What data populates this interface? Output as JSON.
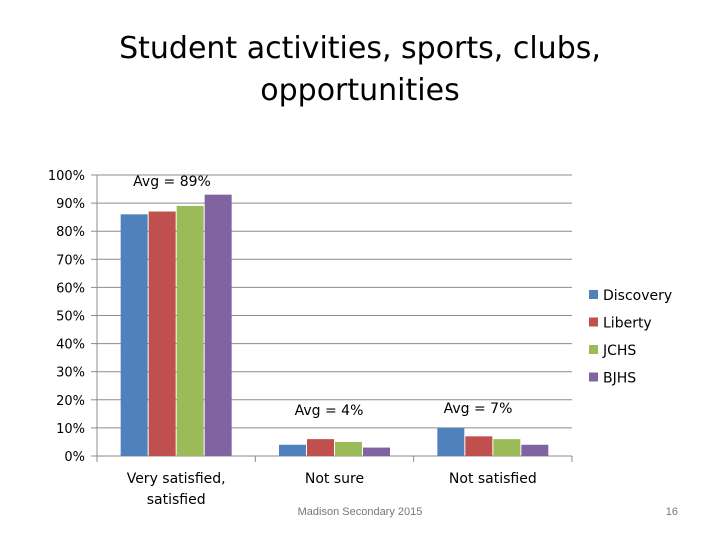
{
  "slide": {
    "title_line1": "Student activities, sports, clubs,",
    "title_line2": "opportunities",
    "footer": "Madison Secondary 2015",
    "page_number": "16"
  },
  "chart_data": {
    "type": "bar",
    "title": "Student activities, sports, clubs, opportunities",
    "categories": [
      "Very satisfied, satisfied",
      "Not sure",
      "Not satisfied"
    ],
    "series": [
      {
        "name": "Discovery",
        "color": "#4f81bd",
        "values": [
          86,
          4,
          10
        ]
      },
      {
        "name": "Liberty",
        "color": "#c0504d",
        "values": [
          87,
          6,
          7
        ]
      },
      {
        "name": "JCHS",
        "color": "#9bbb59",
        "values": [
          89,
          5,
          6
        ]
      },
      {
        "name": "BJHS",
        "color": "#8064a2",
        "values": [
          93,
          3,
          4
        ]
      }
    ],
    "ylim": [
      0,
      100
    ],
    "yticks": [
      "0%",
      "10%",
      "20%",
      "30%",
      "40%",
      "50%",
      "60%",
      "70%",
      "80%",
      "90%",
      "100%"
    ],
    "grid": true,
    "legend_position": "right",
    "annotations": [
      "Avg = 89%",
      "Avg = 4%",
      "Avg = 7%"
    ]
  }
}
